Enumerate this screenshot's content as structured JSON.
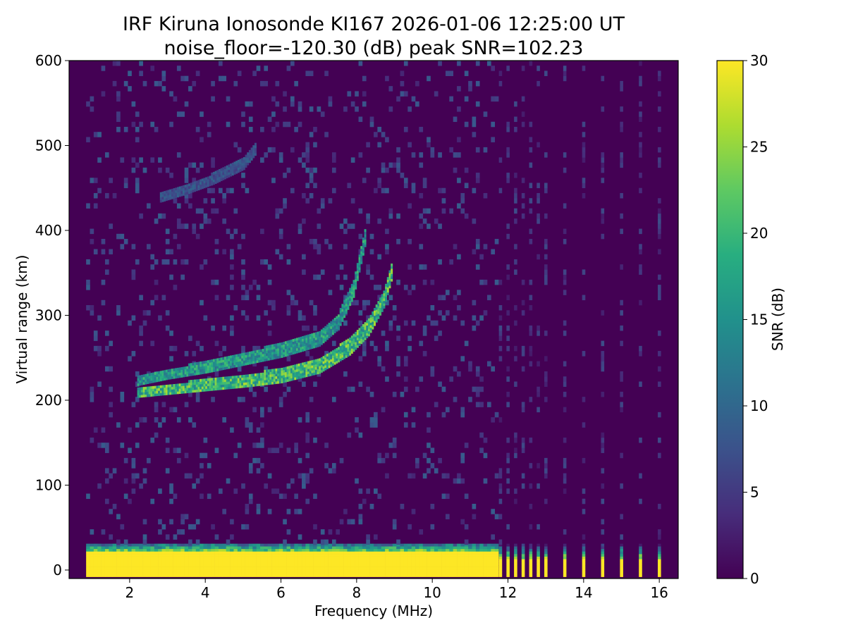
{
  "chart_data": {
    "type": "heatmap",
    "title": "IRF Kiruna Ionosonde KI167 2026-01-06 12:25:00  UT",
    "subtitle": "noise_floor=-120.30 (dB) peak SNR=102.23",
    "xlabel": "Frequency (MHz)",
    "ylabel": "Virtual range (km)",
    "colorbar_label": "SNR (dB)",
    "colormap": "viridis",
    "xlim": [
      0.4,
      16.5
    ],
    "ylim": [
      -10,
      600
    ],
    "clim": [
      0,
      30
    ],
    "x_ticks": [
      2,
      4,
      6,
      8,
      10,
      12,
      14,
      16
    ],
    "y_ticks": [
      0,
      100,
      200,
      300,
      400,
      500,
      600
    ],
    "colorbar_ticks": [
      0,
      5,
      10,
      15,
      20,
      25,
      30
    ],
    "data_freq_range": [
      0.85,
      16.3
    ],
    "continuous_sweep_end": 11.7,
    "sparse_frequencies": [
      11.8,
      12.0,
      12.2,
      12.4,
      12.6,
      12.8,
      13.0,
      13.5,
      14.0,
      14.5,
      15.0,
      15.5,
      16.0
    ],
    "ground_clutter": {
      "range_min": -8,
      "range_max": 30,
      "snr": 30
    },
    "echo_traces": [
      {
        "name": "F-layer O trace",
        "freq": [
          2.2,
          3.0,
          4.0,
          5.0,
          6.0,
          7.0,
          7.8,
          8.3,
          8.7,
          8.9
        ],
        "range": [
          208,
          212,
          217,
          222,
          228,
          240,
          262,
          285,
          318,
          350
        ],
        "snr": 24
      },
      {
        "name": "F-layer upper trace",
        "freq": [
          2.2,
          3.0,
          4.0,
          5.0,
          6.0,
          7.0,
          7.5,
          7.9,
          8.2
        ],
        "range": [
          222,
          230,
          238,
          248,
          258,
          272,
          292,
          330,
          390
        ],
        "snr": 19
      },
      {
        "name": "Second-hop trace",
        "freq": [
          2.8,
          3.5,
          4.2,
          5.0,
          5.3
        ],
        "range": [
          438,
          448,
          460,
          478,
          495
        ],
        "snr": 9
      }
    ]
  }
}
